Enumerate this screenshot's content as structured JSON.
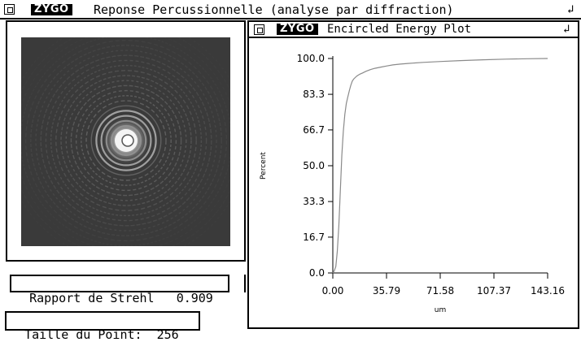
{
  "main_window": {
    "logo": "ZYGO",
    "title": "Reponse Percussionnelle (analyse par diffraction)"
  },
  "fields": {
    "strehl_label": "Rapport de Strehl",
    "strehl_value": "0.909",
    "spot_label": "Taille du Point:",
    "spot_value": "256"
  },
  "plot_window": {
    "logo": "ZYGO",
    "title": "Encircled Energy Plot"
  },
  "colors": {
    "curve": "#8a8a8a",
    "psf_background": "#3a3a3a"
  },
  "chart_data": {
    "type": "line",
    "title": "",
    "xlabel": "um",
    "ylabel": "Percent",
    "xlim": [
      0,
      143.16
    ],
    "ylim": [
      0,
      100
    ],
    "x_ticks": [
      "0.00",
      "35.79",
      "71.58",
      "107.37",
      "143.16"
    ],
    "y_ticks": [
      "100.0",
      "83.3",
      "66.7",
      "50.0",
      "33.3",
      "16.7",
      "0.0"
    ],
    "grid": false,
    "series": [
      {
        "x": [
          0,
          1,
          2,
          3,
          4,
          5,
          6,
          7,
          8,
          9,
          10,
          11,
          12,
          13,
          14,
          16,
          18,
          20,
          22,
          25,
          28,
          32,
          36,
          40,
          45,
          50,
          60,
          72,
          85,
          100,
          115,
          130,
          143.16
        ],
        "y": [
          0,
          1,
          3,
          10,
          22,
          38,
          55,
          66,
          74,
          79,
          82,
          85,
          87.5,
          89.5,
          90.5,
          91.8,
          92.7,
          93.3,
          94,
          94.8,
          95.4,
          96,
          96.5,
          97,
          97.4,
          97.7,
          98.2,
          98.6,
          99,
          99.4,
          99.7,
          99.9,
          100
        ]
      }
    ]
  }
}
